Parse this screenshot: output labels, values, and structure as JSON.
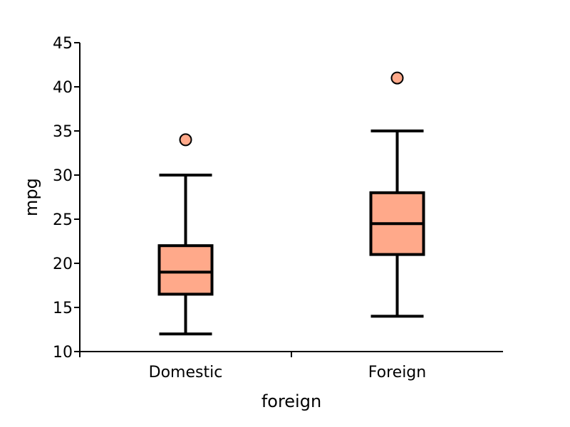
{
  "chart_data": {
    "type": "box",
    "title": "",
    "xlabel": "foreign",
    "ylabel": "mpg",
    "ylim": [
      10,
      45
    ],
    "yticks": [
      10,
      15,
      20,
      25,
      30,
      35,
      40,
      45
    ],
    "grid": false,
    "legend": "none",
    "colors": {
      "box_fill": "#FFA98A",
      "stroke": "#000000"
    },
    "categories": [
      "Domestic",
      "Foreign"
    ],
    "boxes": [
      {
        "category": "Domestic",
        "whisker_low": 12,
        "q1": 16.5,
        "median": 19,
        "q3": 22,
        "whisker_high": 30,
        "outliers": [
          34
        ]
      },
      {
        "category": "Foreign",
        "whisker_low": 14,
        "q1": 21,
        "median": 24.5,
        "q3": 28,
        "whisker_high": 35,
        "outliers": [
          41
        ]
      }
    ]
  }
}
